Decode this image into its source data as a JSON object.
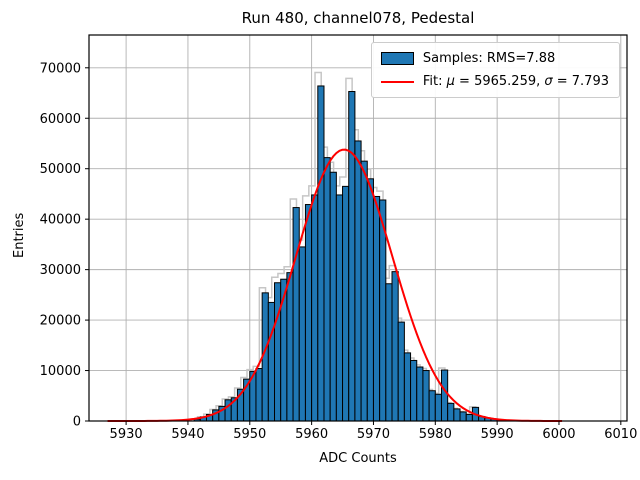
{
  "figure": {
    "title": "Run 480, channel078, Pedestal",
    "xlabel": "ADC Counts",
    "ylabel": "Entries",
    "legend": {
      "samples_label": "Samples: RMS=7.88",
      "fit_parts": [
        {
          "text": "Fit: ",
          "italic": false
        },
        {
          "text": "μ",
          "italic": true
        },
        {
          "text": " = 5965.259, ",
          "italic": false
        },
        {
          "text": "σ",
          "italic": true
        },
        {
          "text": " = 7.793",
          "italic": false
        }
      ],
      "patch_color": "#1f77b4",
      "line_color": "#ff0000"
    }
  },
  "chart_data": {
    "type": "bar",
    "title": "Run 480, channel078, Pedestal",
    "xlabel": "ADC Counts",
    "ylabel": "Entries",
    "xlim": [
      5924,
      6011
    ],
    "ylim": [
      0,
      76500
    ],
    "xticks": [
      5930,
      5940,
      5950,
      5960,
      5970,
      5980,
      5990,
      6000,
      6010
    ],
    "yticks": [
      0,
      10000,
      20000,
      30000,
      40000,
      50000,
      60000,
      70000
    ],
    "grid": true,
    "grid_color": "#b0b0b0",
    "legend_position": "upper right",
    "series": [
      {
        "name": "Samples: RMS=7.88",
        "type": "histogram",
        "color": "#1f77b4",
        "edge_color": "#000000",
        "bin_start": 5941,
        "bin_width": 1,
        "values": [
          350,
          800,
          1300,
          2200,
          2900,
          4200,
          4600,
          6300,
          8300,
          9800,
          10400,
          25400,
          23500,
          27400,
          28100,
          29400,
          42300,
          34500,
          42900,
          44800,
          66400,
          52200,
          49300,
          44800,
          46500,
          65300,
          55500,
          51500,
          48000,
          44500,
          43800,
          27200,
          29600,
          19600,
          13500,
          12000,
          10700,
          10000,
          6000,
          5300,
          10100,
          3500,
          2400,
          1800,
          1300,
          2700,
          900,
          600,
          400,
          300
        ]
      },
      {
        "name": "Fit: μ = 5965.259, σ = 7.793",
        "type": "gaussian_curve",
        "color": "#ff0000",
        "mu": 5965.259,
        "sigma": 7.793,
        "amplitude": 53800,
        "x_range": [
          5927,
          6000.5
        ]
      },
      {
        "name": "shadow-step-outline",
        "type": "step_outline",
        "color": "#c6c6c6",
        "offset_bins": -0.45,
        "scale": 1.04
      }
    ]
  }
}
